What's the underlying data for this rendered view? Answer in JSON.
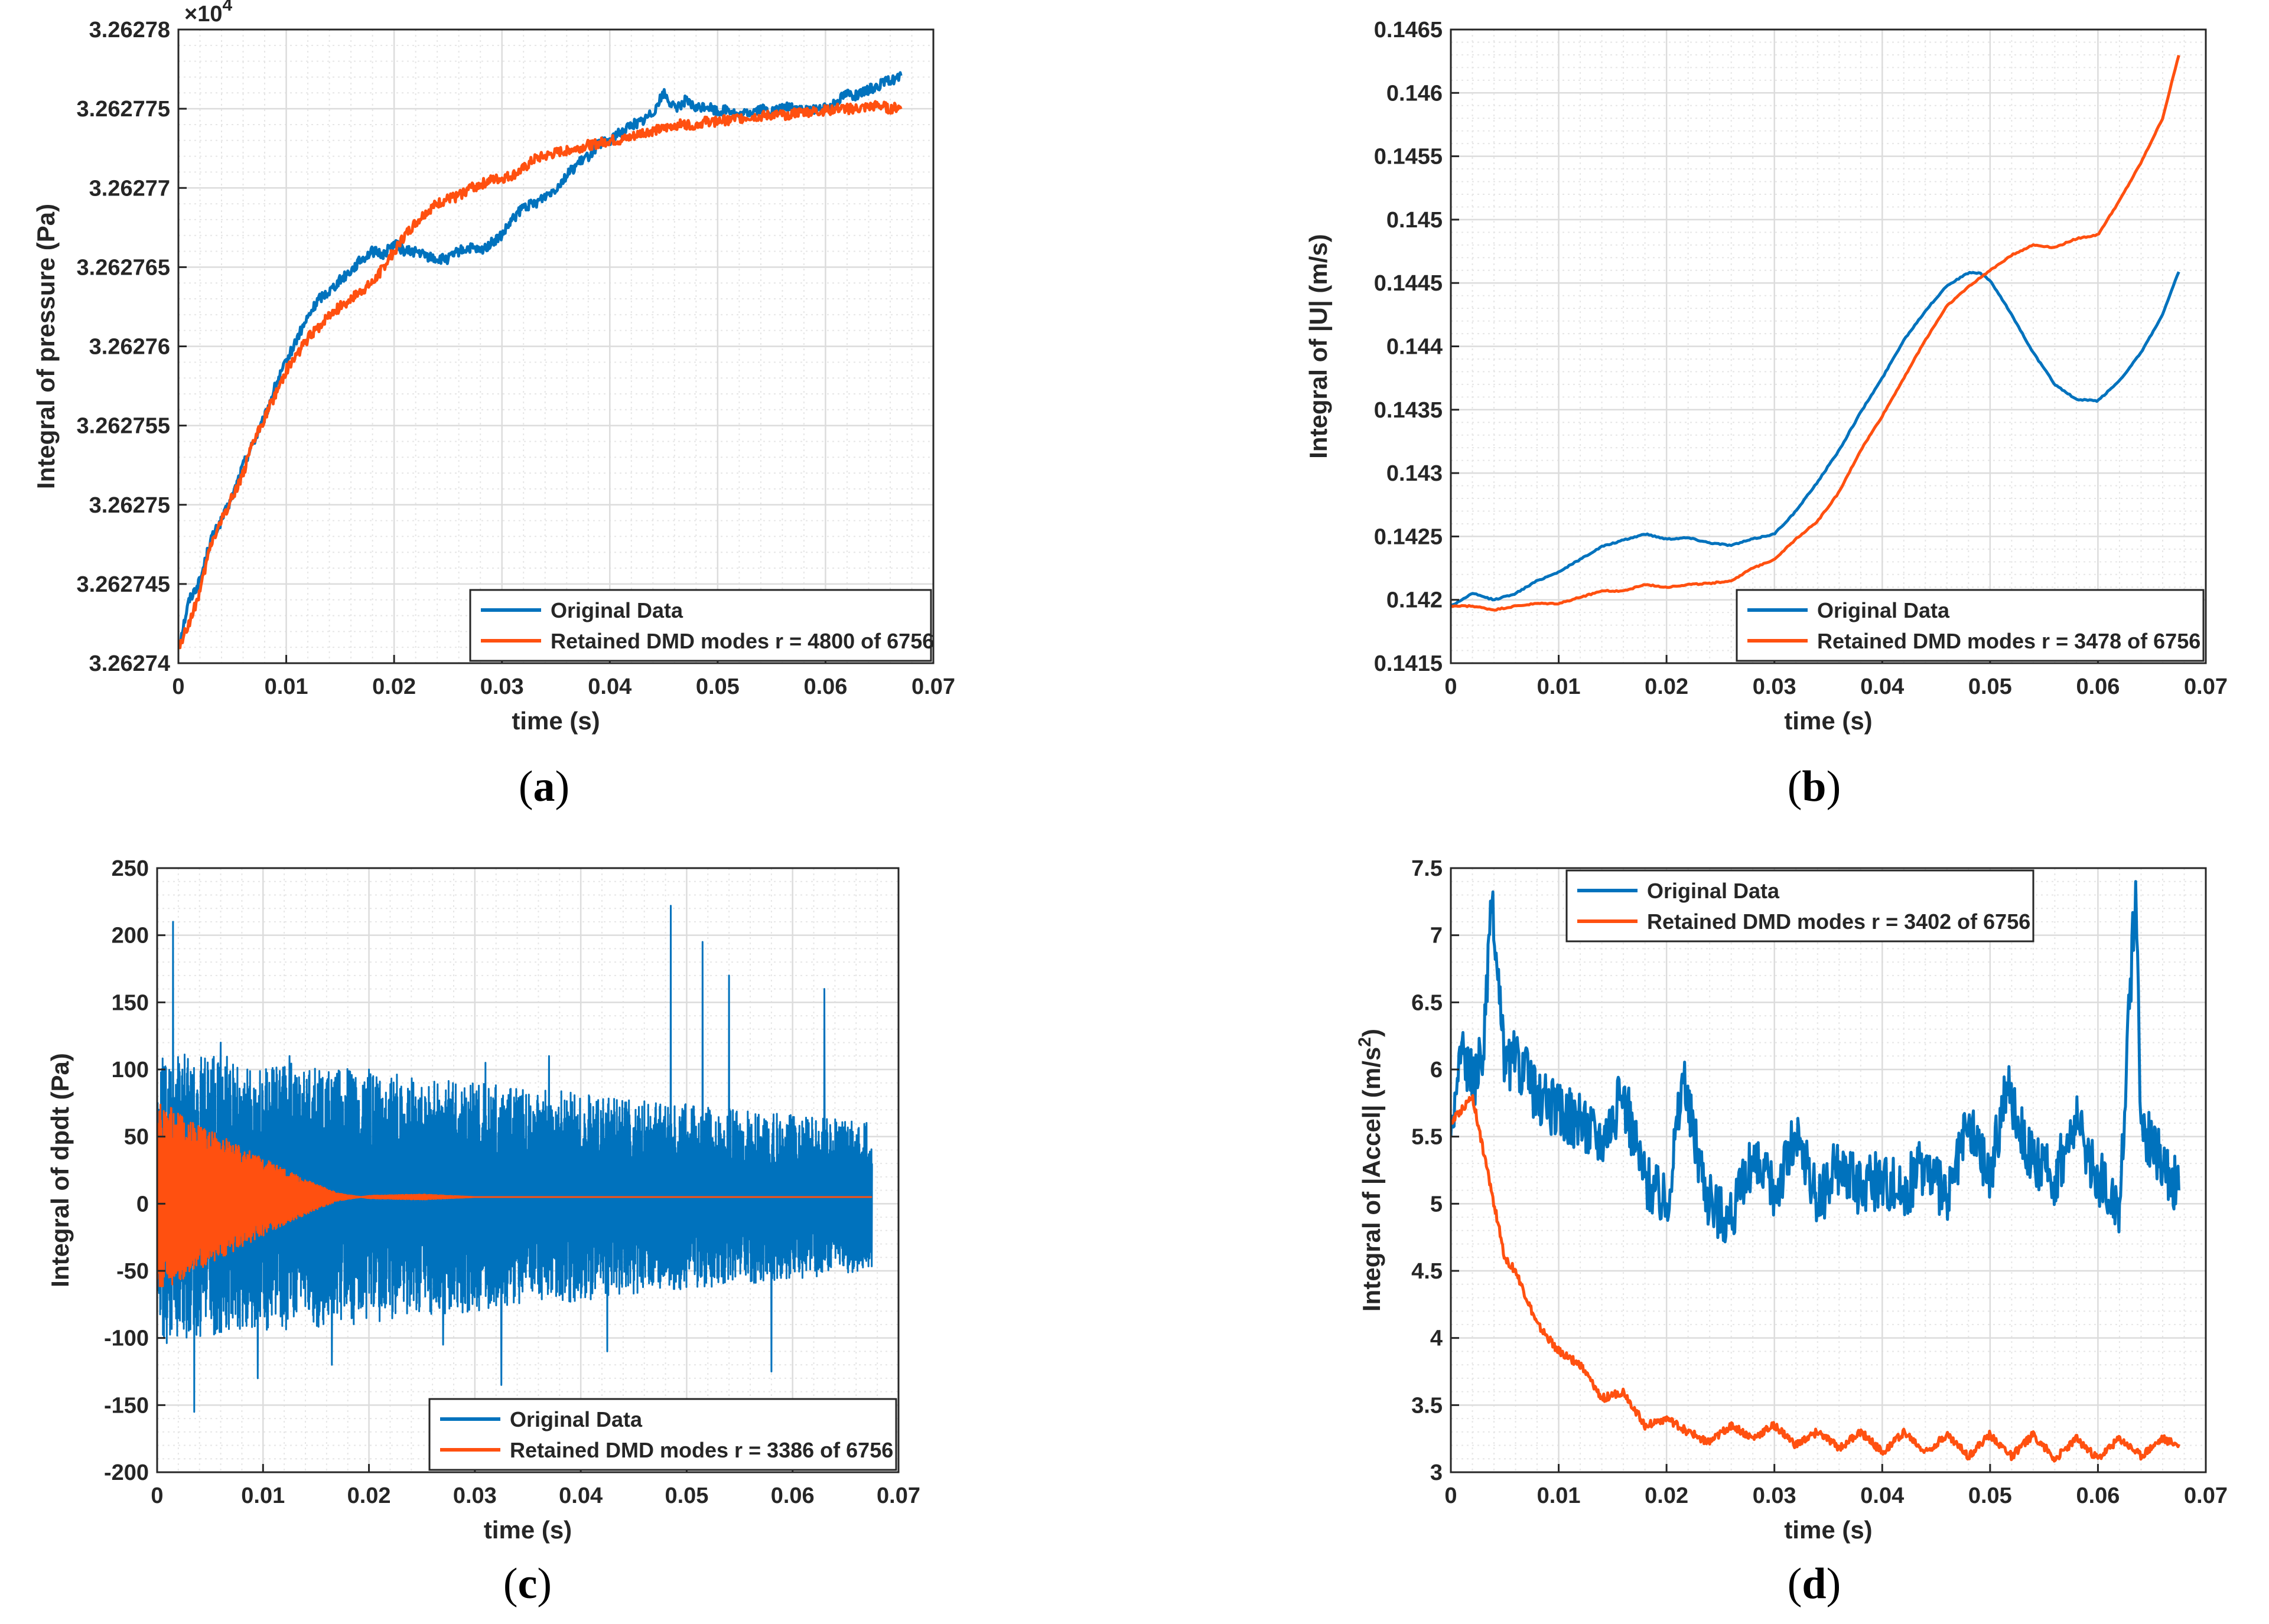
{
  "figure": {
    "captions": [
      "a",
      "b",
      "c",
      "d"
    ]
  },
  "colors": {
    "original": "#0072BD",
    "dmd": "#FF5010",
    "grid": "#dcdcdc",
    "axis": "#262626"
  },
  "chart_data": [
    {
      "id": "a",
      "type": "line",
      "ylabel": "Integral of pressure (Pa)",
      "xlabel": "time (s)",
      "exponent_label": "×10",
      "exponent_power": "4",
      "xlim": [
        0,
        0.07
      ],
      "ylim": [
        3.26274,
        3.26278
      ],
      "xticks": [
        0,
        0.01,
        0.02,
        0.03,
        0.04,
        0.05,
        0.06,
        0.07
      ],
      "xtick_labels": [
        "0",
        "0.01",
        "0.02",
        "0.03",
        "0.04",
        "0.05",
        "0.06",
        "0.07"
      ],
      "yticks": [
        3.26274,
        3.262745,
        3.26275,
        3.262755,
        3.26276,
        3.262765,
        3.26277,
        3.262775,
        3.26278
      ],
      "ytick_labels": [
        "3.26274",
        "3.262745",
        "3.26275",
        "3.262755",
        "3.26276",
        "3.262765",
        "3.26277",
        "3.262775",
        "3.26278"
      ],
      "legend_position": "bottom-right",
      "series": [
        {
          "name": "Original Data",
          "key": "original",
          "x": [
            0,
            0.001,
            0.002,
            0.003,
            0.004,
            0.005,
            0.006,
            0.007,
            0.008,
            0.009,
            0.01,
            0.011,
            0.012,
            0.013,
            0.014,
            0.015,
            0.016,
            0.017,
            0.018,
            0.019,
            0.02,
            0.021,
            0.022,
            0.023,
            0.024,
            0.025,
            0.026,
            0.027,
            0.028,
            0.029,
            0.03,
            0.031,
            0.032,
            0.033,
            0.034,
            0.035,
            0.036,
            0.037,
            0.038,
            0.039,
            0.04,
            0.041,
            0.042,
            0.043,
            0.044,
            0.045,
            0.046,
            0.047,
            0.048,
            0.049,
            0.05,
            0.051,
            0.052,
            0.053,
            0.054,
            0.055,
            0.056,
            0.057,
            0.058,
            0.059,
            0.06,
            0.061,
            0.062,
            0.063,
            0.064,
            0.065,
            0.066,
            0.067
          ],
          "y": [
            3.262741,
            3.262744,
            3.2627452,
            3.2627478,
            3.262749,
            3.2627505,
            3.2627525,
            3.262754,
            3.2627555,
            3.2627575,
            3.262759,
            3.2627605,
            3.2627618,
            3.262763,
            3.2627635,
            3.2627642,
            3.2627648,
            3.2627655,
            3.262766,
            3.2627658,
            3.2627665,
            3.262766,
            3.262766,
            3.2627657,
            3.2627655,
            3.2627655,
            3.262766,
            3.2627662,
            3.262766,
            3.2627665,
            3.262767,
            3.262768,
            3.2627688,
            3.262769,
            3.2627695,
            3.26277,
            3.2627708,
            3.2627715,
            3.262772,
            3.2627728,
            3.262773,
            3.2627735,
            3.262774,
            3.2627742,
            3.2627748,
            3.262776,
            3.262775,
            3.2627755,
            3.262775,
            3.2627752,
            3.2627748,
            3.262775,
            3.2627745,
            3.2627748,
            3.262775,
            3.2627748,
            3.262775,
            3.2627752,
            3.2627748,
            3.262775,
            3.262775,
            3.2627755,
            3.262776,
            3.2627758,
            3.2627762,
            3.2627765,
            3.2627768,
            3.262777
          ]
        },
        {
          "name": "Retained DMD modes r = 4800 of 6756",
          "key": "dmd",
          "x": [
            0,
            0.001,
            0.002,
            0.003,
            0.004,
            0.005,
            0.006,
            0.007,
            0.008,
            0.009,
            0.01,
            0.011,
            0.012,
            0.013,
            0.014,
            0.015,
            0.016,
            0.017,
            0.018,
            0.019,
            0.02,
            0.021,
            0.022,
            0.023,
            0.024,
            0.025,
            0.026,
            0.027,
            0.028,
            0.029,
            0.03,
            0.031,
            0.032,
            0.033,
            0.034,
            0.035,
            0.036,
            0.037,
            0.038,
            0.039,
            0.04,
            0.041,
            0.042,
            0.043,
            0.044,
            0.045,
            0.046,
            0.047,
            0.048,
            0.049,
            0.05,
            0.051,
            0.052,
            0.053,
            0.054,
            0.055,
            0.056,
            0.057,
            0.058,
            0.059,
            0.06,
            0.061,
            0.062,
            0.063,
            0.064,
            0.065,
            0.066,
            0.067
          ],
          "y": [
            3.262741,
            3.2627425,
            3.2627445,
            3.2627475,
            3.262749,
            3.2627505,
            3.262752,
            3.262754,
            3.2627555,
            3.262757,
            3.2627585,
            3.2627595,
            3.2627605,
            3.2627612,
            3.262762,
            3.2627625,
            3.262763,
            3.2627635,
            3.262764,
            3.262765,
            3.262766,
            3.262767,
            3.2627678,
            3.2627685,
            3.262769,
            3.2627693,
            3.2627695,
            3.26277,
            3.2627702,
            3.2627705,
            3.2627706,
            3.2627708,
            3.2627712,
            3.2627718,
            3.262772,
            3.2627722,
            3.2627724,
            3.2627725,
            3.2627727,
            3.2627728,
            3.262773,
            3.262773,
            3.2627732,
            3.2627735,
            3.2627736,
            3.2627737,
            3.262774,
            3.262774,
            3.262774,
            3.2627742,
            3.2627742,
            3.2627743,
            3.2627744,
            3.2627745,
            3.2627745,
            3.2627746,
            3.2627746,
            3.2627747,
            3.2627748,
            3.2627748,
            3.2627749,
            3.262775,
            3.262775,
            3.262775,
            3.2627751,
            3.2627752,
            3.262775,
            3.2627751
          ]
        }
      ]
    },
    {
      "id": "b",
      "type": "line",
      "ylabel": "Integral of |U| (m/s)",
      "xlabel": "time (s)",
      "xlim": [
        0,
        0.07
      ],
      "ylim": [
        0.1415,
        0.1465
      ],
      "xticks": [
        0,
        0.01,
        0.02,
        0.03,
        0.04,
        0.05,
        0.06,
        0.07
      ],
      "xtick_labels": [
        "0",
        "0.01",
        "0.02",
        "0.03",
        "0.04",
        "0.05",
        "0.06",
        "0.07"
      ],
      "yticks": [
        0.1415,
        0.142,
        0.1425,
        0.143,
        0.1435,
        0.144,
        0.1445,
        0.145,
        0.1455,
        0.146,
        0.1465
      ],
      "ytick_labels": [
        "0.1415",
        "0.142",
        "0.1425",
        "0.143",
        "0.1435",
        "0.144",
        "0.1445",
        "0.145",
        "0.1455",
        "0.146",
        "0.1465"
      ],
      "legend_position": "bottom-right",
      "series": [
        {
          "name": "Original Data",
          "key": "original",
          "x": [
            0,
            0.002,
            0.004,
            0.006,
            0.008,
            0.01,
            0.012,
            0.014,
            0.016,
            0.018,
            0.02,
            0.022,
            0.024,
            0.026,
            0.028,
            0.03,
            0.032,
            0.034,
            0.036,
            0.038,
            0.04,
            0.042,
            0.044,
            0.046,
            0.048,
            0.049,
            0.05,
            0.052,
            0.054,
            0.056,
            0.058,
            0.06,
            0.062,
            0.064,
            0.066,
            0.0675
          ],
          "y": [
            0.14195,
            0.14205,
            0.142,
            0.14205,
            0.14215,
            0.14222,
            0.14232,
            0.14242,
            0.14247,
            0.14252,
            0.14248,
            0.14249,
            0.14245,
            0.14243,
            0.14248,
            0.14252,
            0.1427,
            0.14293,
            0.14318,
            0.14348,
            0.14375,
            0.14405,
            0.14428,
            0.14448,
            0.14458,
            0.14458,
            0.14452,
            0.14425,
            0.14395,
            0.1437,
            0.14358,
            0.14357,
            0.14373,
            0.14395,
            0.14425,
            0.14459
          ]
        },
        {
          "name": "Retained DMD modes r = 3478 of 6756",
          "key": "dmd",
          "x": [
            0,
            0.002,
            0.004,
            0.006,
            0.008,
            0.01,
            0.012,
            0.014,
            0.016,
            0.018,
            0.02,
            0.022,
            0.024,
            0.026,
            0.028,
            0.03,
            0.032,
            0.034,
            0.036,
            0.038,
            0.04,
            0.042,
            0.044,
            0.046,
            0.048,
            0.05,
            0.052,
            0.054,
            0.056,
            0.058,
            0.06,
            0.062,
            0.064,
            0.066,
            0.0675
          ],
          "y": [
            0.14195,
            0.14195,
            0.14192,
            0.14195,
            0.14197,
            0.14197,
            0.14202,
            0.14207,
            0.14207,
            0.14212,
            0.1421,
            0.14212,
            0.14213,
            0.14215,
            0.14225,
            0.14232,
            0.14248,
            0.14262,
            0.14285,
            0.14318,
            0.14345,
            0.14375,
            0.14405,
            0.14432,
            0.14447,
            0.1446,
            0.14472,
            0.1448,
            0.14478,
            0.14485,
            0.14488,
            0.14515,
            0.14545,
            0.1458,
            0.1463
          ]
        }
      ]
    },
    {
      "id": "c",
      "type": "line",
      "ylabel": "Integral of dpdt (Pa)",
      "xlabel": "time (s)",
      "xlim": [
        0,
        0.07
      ],
      "ylim": [
        -200,
        250
      ],
      "xticks": [
        0,
        0.01,
        0.02,
        0.03,
        0.04,
        0.05,
        0.06,
        0.07
      ],
      "xtick_labels": [
        "0",
        "0.01",
        "0.02",
        "0.03",
        "0.04",
        "0.05",
        "0.06",
        "0.07"
      ],
      "yticks": [
        -200,
        -150,
        -100,
        -50,
        0,
        50,
        100,
        150,
        200,
        250
      ],
      "ytick_labels": [
        "-200",
        "-150",
        "-100",
        "-50",
        "0",
        "50",
        "100",
        "150",
        "200",
        "250"
      ],
      "legend_position": "bottom-right",
      "series": [
        {
          "name": "Original Data",
          "key": "original",
          "x": [
            0.0001,
            0.0015,
            0.0035,
            0.006,
            0.0095,
            0.0125,
            0.0165,
            0.02,
            0.027,
            0.031,
            0.0325,
            0.037,
            0.0425,
            0.0485,
            0.0515,
            0.054,
            0.058,
            0.063,
            0.0675
          ],
          "y": [
            60,
            210,
            -155,
            120,
            -130,
            110,
            -120,
            100,
            -105,
            105,
            -135,
            110,
            -110,
            222,
            195,
            170,
            -125,
            160,
            30
          ],
          "envelope": {
            "start_amp": 110,
            "end_amp": 55
          }
        },
        {
          "name": "Retained DMD modes r = 3386 of 6756",
          "key": "dmd",
          "x": [
            0,
            0.002,
            0.005,
            0.008,
            0.011,
            0.014,
            0.017,
            0.02,
            0.025,
            0.03,
            0.04,
            0.05,
            0.06,
            0.0675
          ],
          "y": [
            75,
            70,
            55,
            42,
            30,
            18,
            8,
            4,
            3,
            5,
            5,
            5,
            5,
            5
          ],
          "envelope": {
            "offset": 5
          }
        }
      ]
    },
    {
      "id": "d",
      "type": "line",
      "ylabel": "Integral of |Accel| (m/s",
      "ylabel_sup": "2",
      "ylabel_tail": ")",
      "xlabel": "time (s)",
      "xlim": [
        0,
        0.07
      ],
      "ylim": [
        3,
        7.5
      ],
      "xticks": [
        0,
        0.01,
        0.02,
        0.03,
        0.04,
        0.05,
        0.06,
        0.07
      ],
      "xtick_labels": [
        "0",
        "0.01",
        "0.02",
        "0.03",
        "0.04",
        "0.05",
        "0.06",
        "0.07"
      ],
      "yticks": [
        3,
        3.5,
        4,
        4.5,
        5,
        5.5,
        6,
        6.5,
        7,
        7.5
      ],
      "ytick_labels": [
        "3",
        "3.5",
        "4",
        "4.5",
        "5",
        "5.5",
        "6",
        "6.5",
        "7",
        "7.5"
      ],
      "legend_position": "top-left",
      "series": [
        {
          "name": "Original Data",
          "key": "original",
          "x": [
            0,
            0.001,
            0.002,
            0.003,
            0.0038,
            0.005,
            0.006,
            0.008,
            0.01,
            0.012,
            0.014,
            0.016,
            0.018,
            0.02,
            0.0215,
            0.024,
            0.026,
            0.028,
            0.03,
            0.032,
            0.034,
            0.036,
            0.038,
            0.04,
            0.042,
            0.044,
            0.046,
            0.048,
            0.05,
            0.0515,
            0.054,
            0.056,
            0.058,
            0.06,
            0.062,
            0.0635,
            0.064,
            0.066,
            0.0675
          ],
          "y": [
            5.5,
            6.2,
            5.9,
            6.1,
            7.22,
            6.0,
            6.1,
            5.8,
            5.7,
            5.6,
            5.5,
            5.8,
            5.2,
            5.0,
            5.9,
            5.0,
            4.9,
            5.3,
            5.1,
            5.5,
            5.0,
            5.3,
            5.1,
            5.2,
            5.1,
            5.3,
            5.0,
            5.6,
            5.2,
            5.9,
            5.3,
            5.2,
            5.6,
            5.2,
            5.0,
            7.4,
            5.6,
            5.3,
            5.1
          ]
        },
        {
          "name": "Retained DMD modes r = 3402 of 6756",
          "key": "dmd",
          "x": [
            0,
            0.002,
            0.004,
            0.005,
            0.006,
            0.008,
            0.01,
            0.012,
            0.014,
            0.016,
            0.018,
            0.02,
            0.022,
            0.024,
            0.026,
            0.028,
            0.03,
            0.032,
            0.034,
            0.036,
            0.038,
            0.04,
            0.042,
            0.044,
            0.046,
            0.048,
            0.05,
            0.052,
            0.054,
            0.056,
            0.058,
            0.06,
            0.062,
            0.064,
            0.066,
            0.0675
          ],
          "y": [
            5.6,
            5.8,
            5.0,
            4.6,
            4.5,
            4.1,
            3.9,
            3.8,
            3.55,
            3.6,
            3.35,
            3.4,
            3.3,
            3.22,
            3.35,
            3.25,
            3.35,
            3.2,
            3.3,
            3.18,
            3.3,
            3.15,
            3.3,
            3.15,
            3.28,
            3.12,
            3.28,
            3.12,
            3.28,
            3.1,
            3.25,
            3.1,
            3.25,
            3.12,
            3.25,
            3.2
          ]
        }
      ]
    }
  ]
}
